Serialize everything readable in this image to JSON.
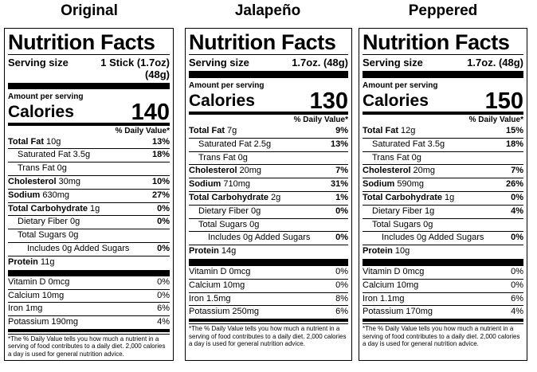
{
  "labels": [
    {
      "name": "Original",
      "title": "Nutrition Facts",
      "serving_label": "Serving size",
      "serving_size": "1 Stick (1.7oz) (48g)",
      "amount_per_serving": "Amount per serving",
      "calories_label": "Calories",
      "calories": "140",
      "dv_header": "% Daily Value*",
      "rows": [
        {
          "name": "Total Fat",
          "amount": "10g",
          "dv": "13%"
        },
        {
          "name": "Saturated Fat",
          "amount": "3.5g",
          "dv": "18%"
        },
        {
          "name": "Trans Fat",
          "amount": "0g"
        },
        {
          "name": "Cholesterol",
          "amount": "30mg",
          "dv": "10%"
        },
        {
          "name": "Sodium",
          "amount": "630mg",
          "dv": "27%"
        },
        {
          "name": "Total Carbohydrate",
          "amount": "1g",
          "dv": "0%"
        },
        {
          "name": "Dietary Fiber",
          "amount": "0g",
          "dv": "0%"
        },
        {
          "name": "Total Sugars",
          "amount": "0g"
        },
        {
          "name": "Includes 0g Added Sugars",
          "dv": "0%"
        },
        {
          "name": "Protein",
          "amount": "11g"
        }
      ],
      "vitamins": [
        {
          "name": "Vitamin D",
          "amount": "0mcg",
          "dv": "0%"
        },
        {
          "name": "Calcium",
          "amount": "10mg",
          "dv": "0%"
        },
        {
          "name": "Iron",
          "amount": "1mg",
          "dv": "6%"
        },
        {
          "name": "Potassium",
          "amount": "190mg",
          "dv": "4%"
        }
      ],
      "footnote": "*The % Daily Value tells you how much a nutrient in a serving of food contributes to a daily diet. 2,000 calories a day is used for general nutrition advice."
    },
    {
      "name": "Jalapeño",
      "title": "Nutrition Facts",
      "serving_label": "Serving size",
      "serving_size": "1.7oz. (48g)",
      "amount_per_serving": "Amount per serving",
      "calories_label": "Calories",
      "calories": "130",
      "dv_header": "% Daily Value*",
      "rows": [
        {
          "name": "Total Fat",
          "amount": "7g",
          "dv": "9%"
        },
        {
          "name": "Saturated Fat",
          "amount": "2.5g",
          "dv": "13%"
        },
        {
          "name": "Trans Fat",
          "amount": "0g"
        },
        {
          "name": "Cholesterol",
          "amount": "20mg",
          "dv": "7%"
        },
        {
          "name": "Sodium",
          "amount": "710mg",
          "dv": "31%"
        },
        {
          "name": "Total Carbohydrate",
          "amount": "2g",
          "dv": "1%"
        },
        {
          "name": "Dietary Fiber",
          "amount": "0g",
          "dv": "0%"
        },
        {
          "name": "Total Sugars",
          "amount": "0g"
        },
        {
          "name": "Includes 0g Added Sugars",
          "dv": "0%"
        },
        {
          "name": "Protein",
          "amount": "14g"
        }
      ],
      "vitamins": [
        {
          "name": "Vitamin D",
          "amount": "0mcg",
          "dv": "0%"
        },
        {
          "name": "Calcium",
          "amount": "10mg",
          "dv": "0%"
        },
        {
          "name": "Iron",
          "amount": "1.5mg",
          "dv": "8%"
        },
        {
          "name": "Potassium",
          "amount": "250mg",
          "dv": "6%"
        }
      ],
      "footnote": "*The % Daily Value tells you how much a nutrient in a serving of food contributes to a daily diet. 2,000 calories a day is used for general nutrition advice."
    },
    {
      "name": "Peppered",
      "title": "Nutrition Facts",
      "serving_label": "Serving size",
      "serving_size": "1.7oz. (48g)",
      "amount_per_serving": "Amount per serving",
      "calories_label": "Calories",
      "calories": "150",
      "dv_header": "% Daily Value*",
      "rows": [
        {
          "name": "Total Fat",
          "amount": "12g",
          "dv": "15%"
        },
        {
          "name": "Saturated Fat",
          "amount": "3.5g",
          "dv": "18%"
        },
        {
          "name": "Trans Fat",
          "amount": "0g"
        },
        {
          "name": "Cholesterol",
          "amount": "20mg",
          "dv": "7%"
        },
        {
          "name": "Sodium",
          "amount": "590mg",
          "dv": "26%"
        },
        {
          "name": "Total Carbohydrate",
          "amount": "1g",
          "dv": "0%"
        },
        {
          "name": "Dietary Fiber",
          "amount": "1g",
          "dv": "4%"
        },
        {
          "name": "Total Sugars",
          "amount": "0g"
        },
        {
          "name": "Includes 0g Added Sugars",
          "dv": "0%"
        },
        {
          "name": "Protein",
          "amount": "10g"
        }
      ],
      "vitamins": [
        {
          "name": "Vitamin D",
          "amount": "0mcg",
          "dv": "0%"
        },
        {
          "name": "Calcium",
          "amount": "10mg",
          "dv": "0%"
        },
        {
          "name": "Iron",
          "amount": "1.1mg",
          "dv": "6%"
        },
        {
          "name": "Potassium",
          "amount": "170mg",
          "dv": "4%"
        }
      ],
      "footnote": "*The % Daily Value tells you how much a nutrient in a serving of food contributes to a daily diet. 2,000 calories a day is used for general nutrition advice."
    }
  ]
}
